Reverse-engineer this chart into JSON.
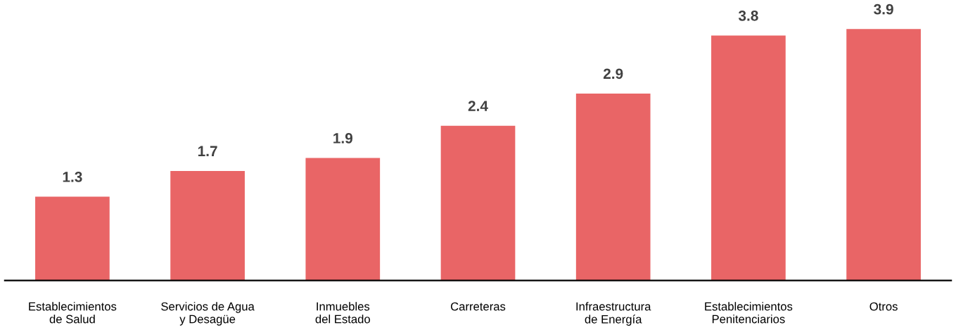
{
  "chart_data": {
    "type": "bar",
    "categories": [
      "Establecimientos\nde Salud",
      "Servicios de Agua\ny Desagüe",
      "Inmuebles\ndel Estado",
      "Carreteras",
      "Infraestructura\nde Energía",
      "Establecimientos\nPenitenciarios",
      "Otros"
    ],
    "values": [
      1.3,
      1.7,
      1.9,
      2.4,
      2.9,
      3.8,
      3.9
    ],
    "color": "#e96566",
    "data_labels": true,
    "tick_labels": "x",
    "grid": false,
    "legend": false
  }
}
